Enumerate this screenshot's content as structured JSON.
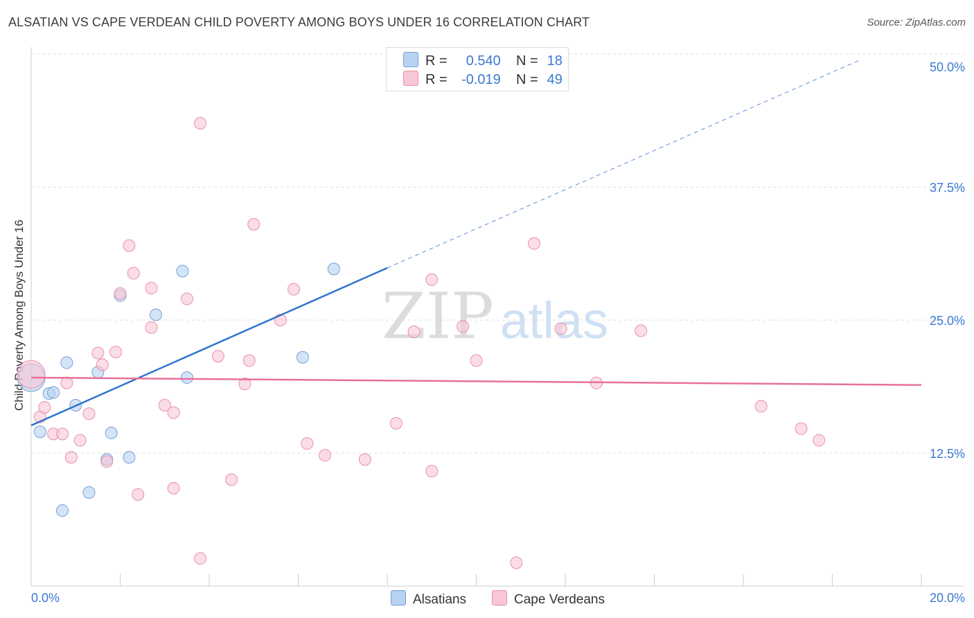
{
  "header": {
    "title": "ALSATIAN VS CAPE VERDEAN CHILD POVERTY AMONG BOYS UNDER 16 CORRELATION CHART",
    "source": "Source: ZipAtlas.com"
  },
  "watermark": {
    "zip": "ZIP",
    "atlas": "atlas"
  },
  "legend": {
    "r_label": "R =",
    "n_label": "N =",
    "rows": [
      {
        "r": "0.540",
        "n": "18"
      },
      {
        "r": "-0.019",
        "n": "49"
      }
    ]
  },
  "colors": {
    "alsatian_fill": "#b8d2f2",
    "alsatian_stroke": "#6f9fd8",
    "alsatian_line": "#2f74d0",
    "capeverdean_fill": "#f8c6d4",
    "capeverdean_stroke": "#e98fab",
    "capeverdean_line": "#e8709a",
    "tick_label": "#3a78d4"
  },
  "chart_data": {
    "type": "scatter",
    "title": "ALSATIAN VS CAPE VERDEAN CHILD POVERTY AMONG BOYS UNDER 16 CORRELATION CHART",
    "xlabel": "",
    "ylabel": "Child Poverty Among Boys Under 16",
    "xlim": [
      0,
      20
    ],
    "ylim": [
      0,
      50
    ],
    "x_tick_labels": [
      "0.0%",
      "20.0%"
    ],
    "y_ticks": [
      12.5,
      25.0,
      37.5,
      50.0
    ],
    "y_tick_labels": [
      "12.5%",
      "25.0%",
      "37.5%",
      "50.0%"
    ],
    "series": [
      {
        "name": "Alsatians",
        "r": 0.54,
        "n": 18,
        "points": [
          {
            "x": 0.0,
            "y": 19.6
          },
          {
            "x": 0.2,
            "y": 14.5
          },
          {
            "x": 0.4,
            "y": 18.1
          },
          {
            "x": 0.5,
            "y": 18.2
          },
          {
            "x": 0.8,
            "y": 21.0
          },
          {
            "x": 0.7,
            "y": 7.1
          },
          {
            "x": 1.0,
            "y": 17.0
          },
          {
            "x": 1.3,
            "y": 8.8
          },
          {
            "x": 1.5,
            "y": 20.1
          },
          {
            "x": 1.7,
            "y": 11.9
          },
          {
            "x": 1.8,
            "y": 14.4
          },
          {
            "x": 2.0,
            "y": 27.3
          },
          {
            "x": 2.2,
            "y": 12.1
          },
          {
            "x": 2.8,
            "y": 25.5
          },
          {
            "x": 3.4,
            "y": 29.6
          },
          {
            "x": 3.5,
            "y": 19.6
          },
          {
            "x": 6.1,
            "y": 21.5
          },
          {
            "x": 6.8,
            "y": 29.8
          }
        ],
        "trend": {
          "x1": 0.0,
          "y1": 15.1,
          "x2": 8.0,
          "y2": 29.9,
          "x_dash_end": 18.6,
          "y_dash_end": 49.4
        }
      },
      {
        "name": "Cape Verdeans",
        "r": -0.019,
        "n": 49,
        "points": [
          {
            "x": 0.0,
            "y": 19.9
          },
          {
            "x": 0.2,
            "y": 15.9
          },
          {
            "x": 0.3,
            "y": 16.8
          },
          {
            "x": 0.5,
            "y": 14.3
          },
          {
            "x": 0.7,
            "y": 14.3
          },
          {
            "x": 0.8,
            "y": 19.1
          },
          {
            "x": 0.9,
            "y": 12.1
          },
          {
            "x": 1.1,
            "y": 13.7
          },
          {
            "x": 1.3,
            "y": 16.2
          },
          {
            "x": 1.5,
            "y": 21.9
          },
          {
            "x": 1.6,
            "y": 20.8
          },
          {
            "x": 1.7,
            "y": 11.7
          },
          {
            "x": 1.9,
            "y": 22.0
          },
          {
            "x": 2.0,
            "y": 27.5
          },
          {
            "x": 2.2,
            "y": 32.0
          },
          {
            "x": 2.3,
            "y": 29.4
          },
          {
            "x": 2.4,
            "y": 8.6
          },
          {
            "x": 2.7,
            "y": 24.3
          },
          {
            "x": 2.7,
            "y": 28.0
          },
          {
            "x": 3.0,
            "y": 17.0
          },
          {
            "x": 3.2,
            "y": 16.3
          },
          {
            "x": 3.2,
            "y": 9.2
          },
          {
            "x": 3.5,
            "y": 27.0
          },
          {
            "x": 3.8,
            "y": 43.5
          },
          {
            "x": 3.8,
            "y": 2.6
          },
          {
            "x": 4.2,
            "y": 21.6
          },
          {
            "x": 4.5,
            "y": 10.0
          },
          {
            "x": 4.9,
            "y": 21.2
          },
          {
            "x": 4.8,
            "y": 19.0
          },
          {
            "x": 5.0,
            "y": 34.0
          },
          {
            "x": 5.6,
            "y": 25.0
          },
          {
            "x": 5.9,
            "y": 27.9
          },
          {
            "x": 6.2,
            "y": 13.4
          },
          {
            "x": 6.6,
            "y": 12.3
          },
          {
            "x": 7.5,
            "y": 11.9
          },
          {
            "x": 8.2,
            "y": 15.3
          },
          {
            "x": 8.6,
            "y": 23.9
          },
          {
            "x": 9.0,
            "y": 28.8
          },
          {
            "x": 9.0,
            "y": 10.8
          },
          {
            "x": 9.7,
            "y": 24.4
          },
          {
            "x": 10.0,
            "y": 21.2
          },
          {
            "x": 10.9,
            "y": 2.2
          },
          {
            "x": 11.3,
            "y": 32.2
          },
          {
            "x": 11.9,
            "y": 24.2
          },
          {
            "x": 12.7,
            "y": 19.1
          },
          {
            "x": 13.7,
            "y": 24.0
          },
          {
            "x": 16.4,
            "y": 16.9
          },
          {
            "x": 17.3,
            "y": 14.8
          },
          {
            "x": 17.7,
            "y": 13.7
          }
        ],
        "trend": {
          "x1": 0.0,
          "y1": 19.6,
          "x2": 20.0,
          "y2": 18.9
        }
      }
    ]
  }
}
